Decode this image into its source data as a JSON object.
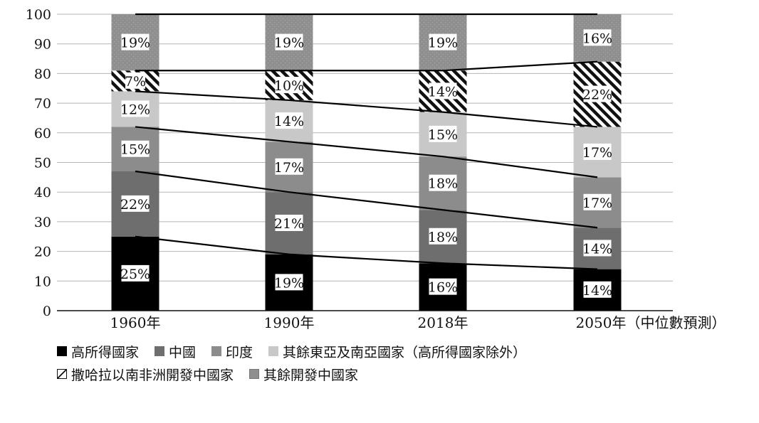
{
  "chart_data": {
    "type": "bar",
    "stacked": true,
    "categories": [
      "1960年",
      "1990年",
      "2018年",
      "2050年（中位數預測）"
    ],
    "ylim": [
      0,
      100
    ],
    "yticks": [
      0,
      10,
      20,
      30,
      40,
      50,
      60,
      70,
      80,
      90,
      100
    ],
    "series": [
      {
        "name": "高所得國家",
        "values": [
          25,
          19,
          16,
          14
        ],
        "labels": [
          "25%",
          "19%",
          "16%",
          "14%"
        ],
        "color": "#000000"
      },
      {
        "name": "中國",
        "values": [
          22,
          21,
          18,
          14
        ],
        "labels": [
          "22%",
          "21%",
          "18%",
          "14%"
        ],
        "color": "#6e6e6e"
      },
      {
        "name": "印度",
        "values": [
          15,
          17,
          18,
          17
        ],
        "labels": [
          "15%",
          "17%",
          "18%",
          "17%"
        ],
        "color": "#8c8c8c"
      },
      {
        "name": "其餘東亞及南亞國家（高所得國家除外）",
        "values": [
          12,
          14,
          15,
          17
        ],
        "labels": [
          "12%",
          "14%",
          "15%",
          "17%"
        ],
        "color": "#c8c8c8"
      },
      {
        "name": "撒哈拉以南非洲開發中國家",
        "values": [
          7,
          10,
          14,
          22
        ],
        "labels": [
          "7%",
          "10%",
          "14%",
          "22%"
        ],
        "color": "hatch"
      },
      {
        "name": "其餘開發中國家",
        "values": [
          19,
          19,
          19,
          16
        ],
        "labels": [
          "19%",
          "19%",
          "19%",
          "16%"
        ],
        "color": "#8f8f8f"
      }
    ],
    "legend_placement": "bottom",
    "connector_lines": true
  }
}
